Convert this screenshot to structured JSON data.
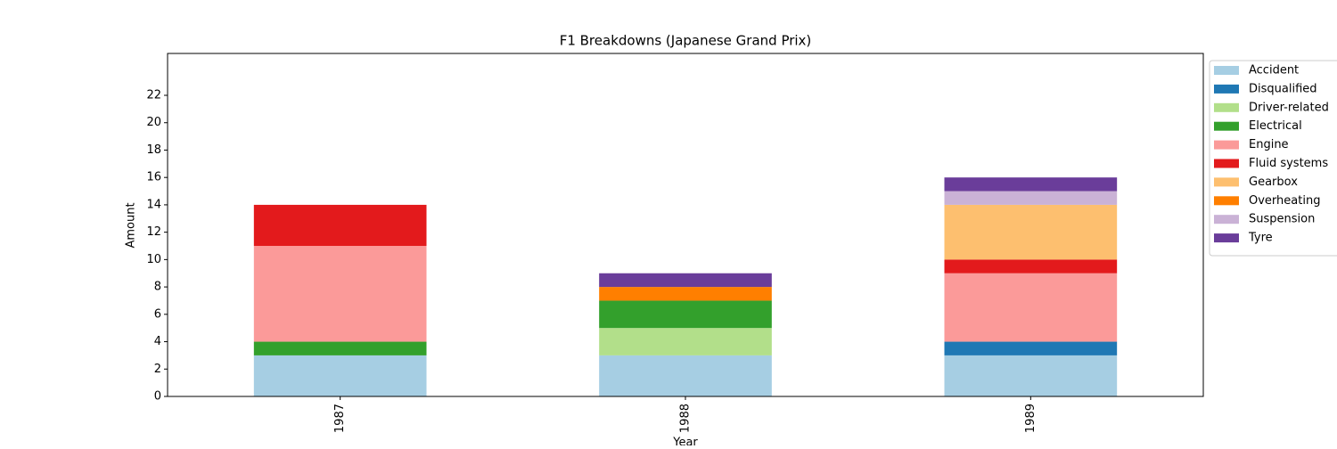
{
  "chart_data": {
    "type": "stacked_bar",
    "title": "F1 Breakdowns (Japanese Grand Prix)",
    "x_label": "Year",
    "y_label": "Amount",
    "categories": [
      "1987",
      "1988",
      "1989"
    ],
    "series": [
      {
        "name": "Accident",
        "color": "#a6cee3",
        "values": [
          3,
          3,
          3
        ]
      },
      {
        "name": "Disqualified",
        "color": "#1f78b4",
        "values": [
          0,
          0,
          1
        ]
      },
      {
        "name": "Driver-related",
        "color": "#b2df8a",
        "values": [
          0,
          2,
          0
        ]
      },
      {
        "name": "Electrical",
        "color": "#33a02c",
        "values": [
          1,
          2,
          0
        ]
      },
      {
        "name": "Engine",
        "color": "#fb9a99",
        "values": [
          7,
          0,
          5
        ]
      },
      {
        "name": "Fluid systems",
        "color": "#e31a1c",
        "values": [
          3,
          0,
          1
        ]
      },
      {
        "name": "Gearbox",
        "color": "#fdbf6f",
        "values": [
          0,
          0,
          4
        ]
      },
      {
        "name": "Overheating",
        "color": "#ff7f00",
        "values": [
          0,
          1,
          0
        ]
      },
      {
        "name": "Suspension",
        "color": "#cab2d6",
        "values": [
          0,
          0,
          1
        ]
      },
      {
        "name": "Tyre",
        "color": "#6a3d9a",
        "values": [
          0,
          1,
          1
        ]
      }
    ],
    "ylim": [
      0,
      25.06
    ],
    "yticks": [
      0,
      2,
      4,
      6,
      8,
      10,
      12,
      14,
      16,
      18,
      20,
      22
    ],
    "legend": "outside-upper-right"
  }
}
